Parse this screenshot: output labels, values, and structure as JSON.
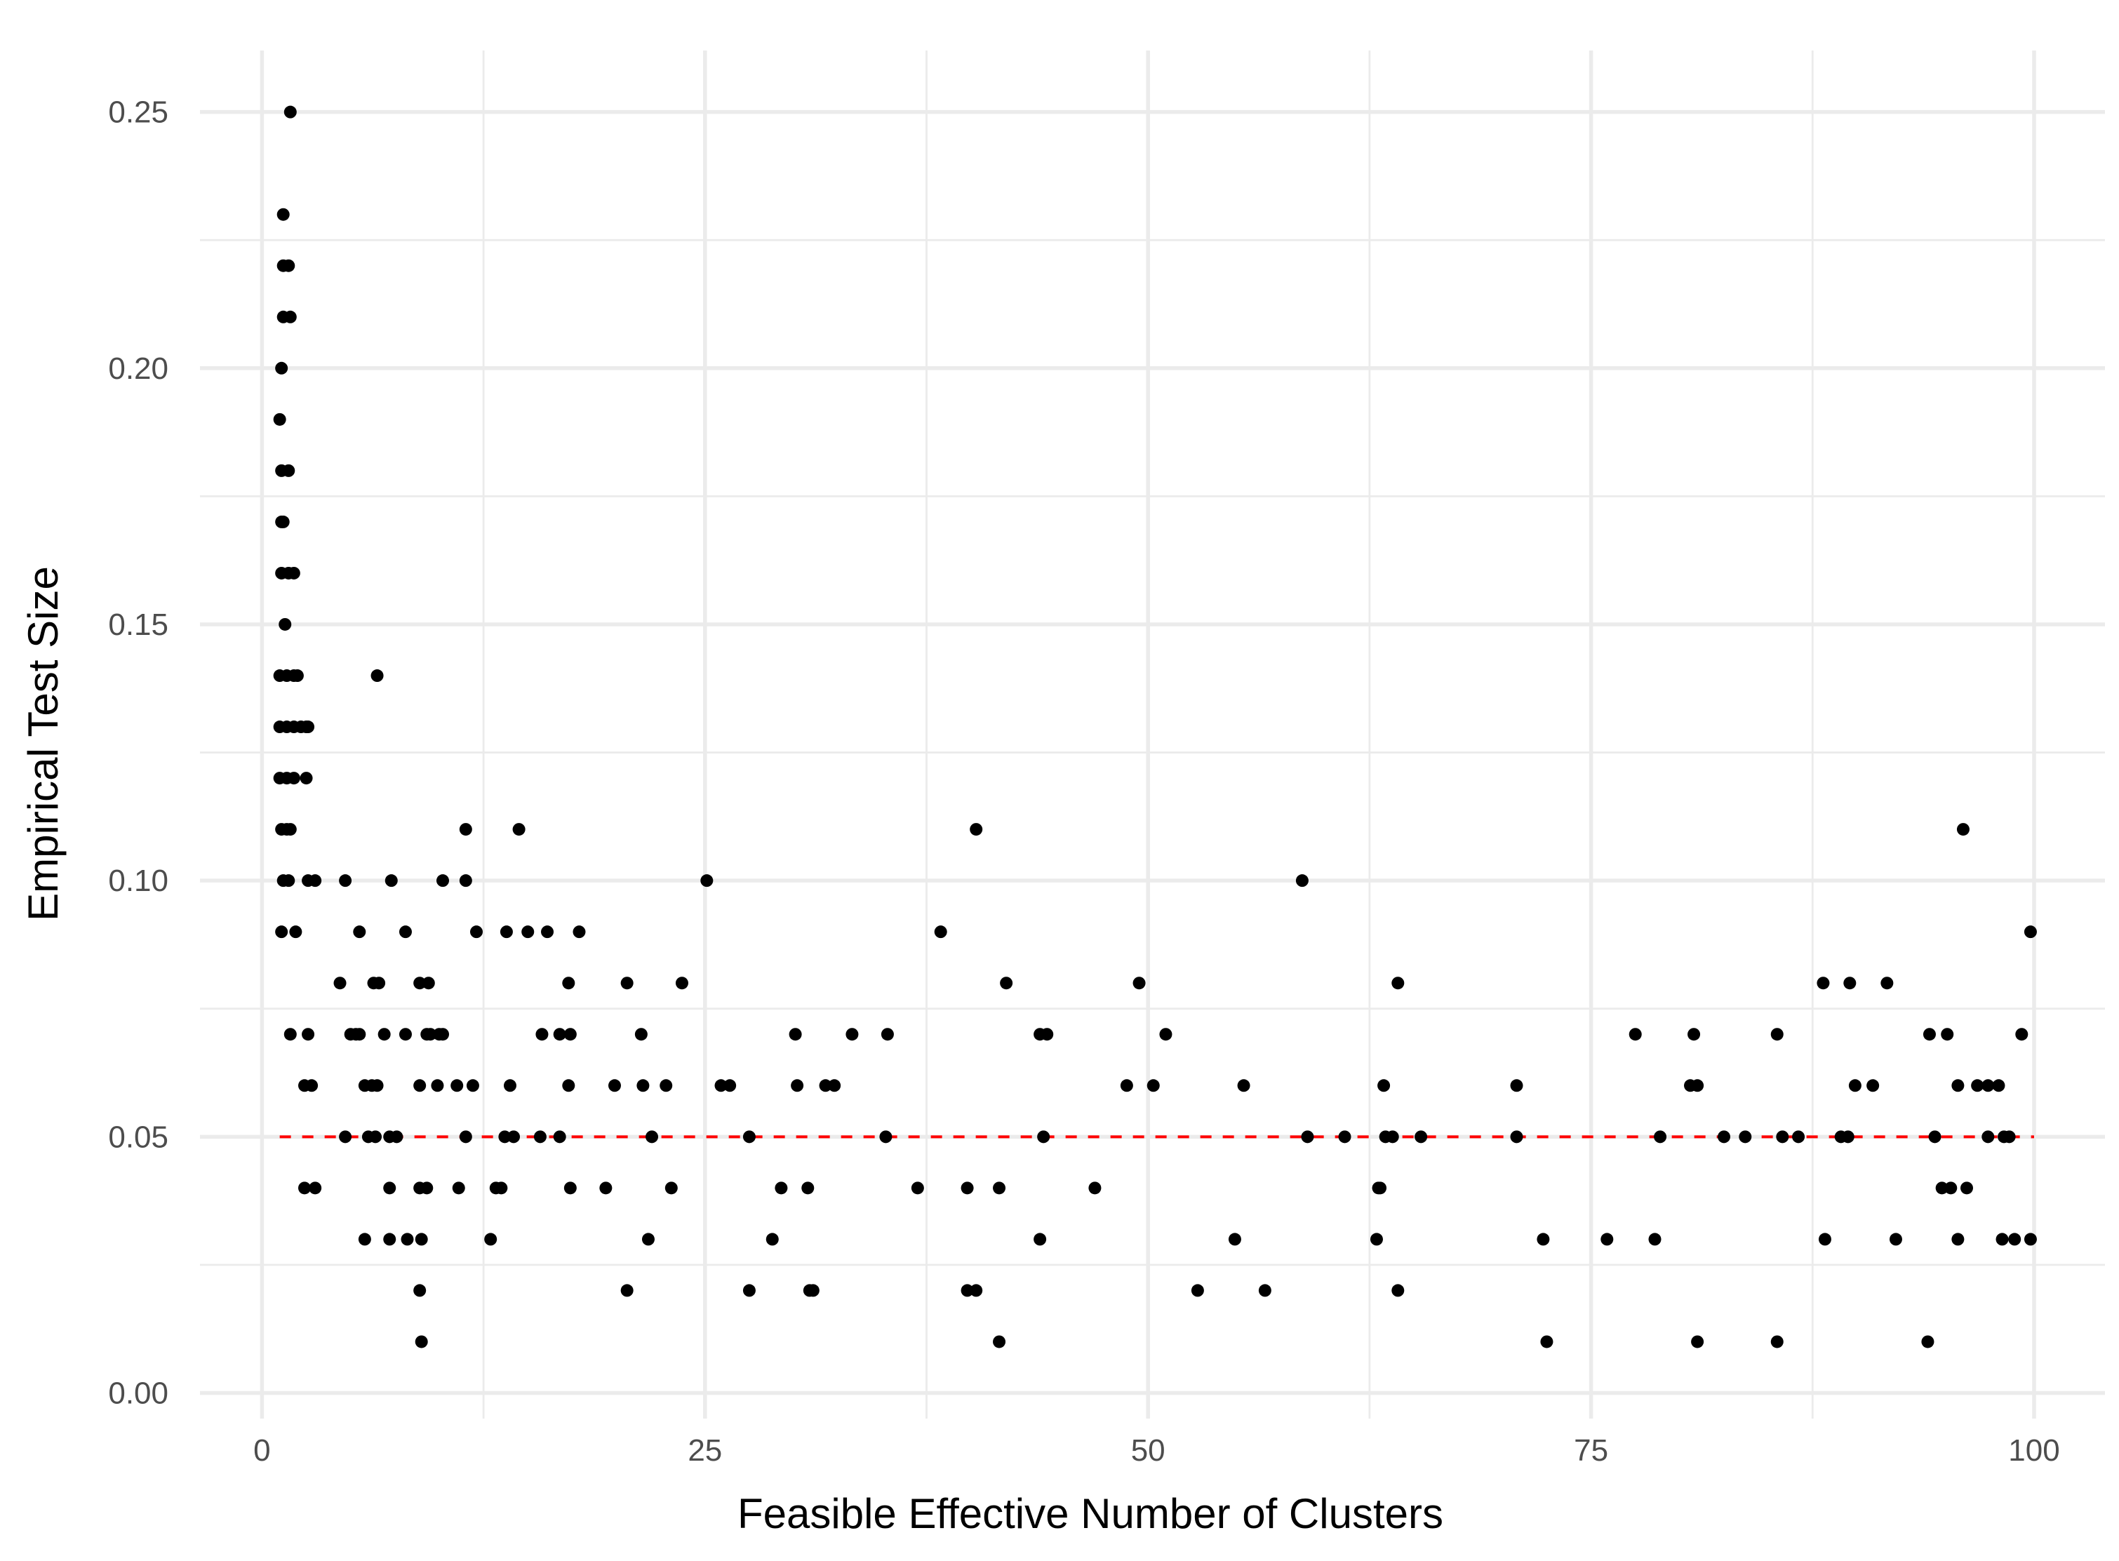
{
  "chart_data": {
    "type": "scatter",
    "title": "",
    "xlabel": "Feasible Effective Number of Clusters",
    "ylabel": "Empirical Test Size",
    "xlim": [
      -3.5,
      104
    ],
    "ylim": [
      -0.005,
      0.262
    ],
    "x_ticks": [
      0,
      25,
      50,
      75,
      100
    ],
    "x_tick_labels": [
      "0",
      "25",
      "50",
      "75",
      "100"
    ],
    "y_ticks": [
      0,
      0.05,
      0.1,
      0.15,
      0.2,
      0.25
    ],
    "y_tick_labels": [
      "0.00",
      "0.05",
      "0.10",
      "0.15",
      "0.20",
      "0.25"
    ],
    "grid": true,
    "point_color": "#000000",
    "reference_line": {
      "y": 0.05,
      "x_range": [
        1,
        100
      ],
      "color": "#ff0000",
      "style": "dashed"
    },
    "points": [
      [
        1.6,
        0.25
      ],
      [
        1.2,
        0.23
      ],
      [
        1.2,
        0.22
      ],
      [
        1.5,
        0.22
      ],
      [
        1.2,
        0.21
      ],
      [
        1.6,
        0.21
      ],
      [
        1.1,
        0.2
      ],
      [
        1.0,
        0.19
      ],
      [
        1.1,
        0.18
      ],
      [
        1.5,
        0.18
      ],
      [
        1.1,
        0.17
      ],
      [
        1.2,
        0.17
      ],
      [
        1.1,
        0.16
      ],
      [
        1.5,
        0.16
      ],
      [
        1.8,
        0.16
      ],
      [
        1.3,
        0.15
      ],
      [
        1.0,
        0.14
      ],
      [
        1.4,
        0.14
      ],
      [
        1.8,
        0.14
      ],
      [
        2.0,
        0.14
      ],
      [
        1.0,
        0.13
      ],
      [
        1.4,
        0.13
      ],
      [
        1.8,
        0.13
      ],
      [
        2.2,
        0.13
      ],
      [
        2.5,
        0.13
      ],
      [
        2.6,
        0.13
      ],
      [
        1.0,
        0.12
      ],
      [
        1.4,
        0.12
      ],
      [
        1.8,
        0.12
      ],
      [
        2.5,
        0.12
      ],
      [
        1.1,
        0.11
      ],
      [
        1.4,
        0.11
      ],
      [
        1.6,
        0.11
      ],
      [
        1.2,
        0.1
      ],
      [
        1.5,
        0.1
      ],
      [
        2.6,
        0.1
      ],
      [
        3.0,
        0.1
      ],
      [
        4.7,
        0.1
      ],
      [
        1.1,
        0.09
      ],
      [
        1.9,
        0.09
      ],
      [
        1.6,
        0.07
      ],
      [
        2.6,
        0.07
      ],
      [
        2.4,
        0.06
      ],
      [
        2.8,
        0.06
      ],
      [
        2.4,
        0.04
      ],
      [
        3.0,
        0.04
      ],
      [
        6.5,
        0.14
      ],
      [
        4.4,
        0.08
      ],
      [
        5.5,
        0.09
      ],
      [
        7.3,
        0.1
      ],
      [
        6.3,
        0.08
      ],
      [
        6.6,
        0.08
      ],
      [
        8.1,
        0.09
      ],
      [
        5.0,
        0.07
      ],
      [
        5.3,
        0.07
      ],
      [
        5.5,
        0.07
      ],
      [
        6.9,
        0.07
      ],
      [
        8.1,
        0.07
      ],
      [
        5.8,
        0.06
      ],
      [
        6.2,
        0.06
      ],
      [
        6.5,
        0.06
      ],
      [
        4.7,
        0.05
      ],
      [
        6.0,
        0.05
      ],
      [
        6.4,
        0.05
      ],
      [
        7.2,
        0.05
      ],
      [
        7.6,
        0.05
      ],
      [
        7.2,
        0.04
      ],
      [
        5.8,
        0.03
      ],
      [
        7.2,
        0.03
      ],
      [
        8.2,
        0.03
      ],
      [
        8.9,
        0.08
      ],
      [
        9.4,
        0.08
      ],
      [
        9.3,
        0.07
      ],
      [
        9.5,
        0.07
      ],
      [
        10.0,
        0.07
      ],
      [
        10.2,
        0.07
      ],
      [
        8.9,
        0.06
      ],
      [
        9.9,
        0.06
      ],
      [
        8.9,
        0.04
      ],
      [
        9.3,
        0.04
      ],
      [
        9.0,
        0.03
      ],
      [
        8.9,
        0.02
      ],
      [
        9.0,
        0.01
      ],
      [
        10.2,
        0.1
      ],
      [
        11.5,
        0.1
      ],
      [
        11.5,
        0.11
      ],
      [
        12.1,
        0.09
      ],
      [
        11.0,
        0.06
      ],
      [
        11.9,
        0.06
      ],
      [
        11.5,
        0.05
      ],
      [
        11.1,
        0.04
      ],
      [
        12.9,
        0.03
      ],
      [
        13.2,
        0.04
      ],
      [
        13.5,
        0.04
      ],
      [
        13.8,
        0.09
      ],
      [
        14.5,
        0.11
      ],
      [
        15.0,
        0.09
      ],
      [
        16.1,
        0.09
      ],
      [
        14.0,
        0.06
      ],
      [
        13.7,
        0.05
      ],
      [
        14.2,
        0.05
      ],
      [
        15.7,
        0.05
      ],
      [
        16.8,
        0.05
      ],
      [
        15.8,
        0.07
      ],
      [
        16.8,
        0.07
      ],
      [
        17.4,
        0.07
      ],
      [
        17.3,
        0.08
      ],
      [
        17.9,
        0.09
      ],
      [
        17.3,
        0.06
      ],
      [
        17.4,
        0.04
      ],
      [
        19.4,
        0.04
      ],
      [
        19.9,
        0.06
      ],
      [
        20.6,
        0.08
      ],
      [
        21.4,
        0.07
      ],
      [
        21.5,
        0.06
      ],
      [
        22.8,
        0.06
      ],
      [
        22.0,
        0.05
      ],
      [
        21.8,
        0.03
      ],
      [
        20.6,
        0.02
      ],
      [
        23.1,
        0.04
      ],
      [
        23.7,
        0.08
      ],
      [
        25.1,
        0.1
      ],
      [
        25.9,
        0.06
      ],
      [
        26.4,
        0.06
      ],
      [
        27.5,
        0.05
      ],
      [
        27.5,
        0.02
      ],
      [
        28.8,
        0.03
      ],
      [
        29.3,
        0.04
      ],
      [
        30.1,
        0.07
      ],
      [
        30.2,
        0.06
      ],
      [
        30.8,
        0.04
      ],
      [
        30.9,
        0.02
      ],
      [
        31.1,
        0.02
      ],
      [
        31.8,
        0.06
      ],
      [
        32.3,
        0.06
      ],
      [
        33.3,
        0.07
      ],
      [
        35.3,
        0.07
      ],
      [
        35.2,
        0.05
      ],
      [
        37.0,
        0.04
      ],
      [
        38.3,
        0.09
      ],
      [
        39.8,
        0.04
      ],
      [
        39.8,
        0.02
      ],
      [
        40.3,
        0.02
      ],
      [
        40.3,
        0.11
      ],
      [
        41.6,
        0.04
      ],
      [
        41.6,
        0.01
      ],
      [
        42.0,
        0.08
      ],
      [
        43.9,
        0.07
      ],
      [
        44.3,
        0.07
      ],
      [
        44.1,
        0.05
      ],
      [
        43.9,
        0.03
      ],
      [
        47.0,
        0.04
      ],
      [
        48.8,
        0.06
      ],
      [
        49.5,
        0.08
      ],
      [
        50.3,
        0.06
      ],
      [
        51.0,
        0.07
      ],
      [
        52.8,
        0.02
      ],
      [
        54.9,
        0.03
      ],
      [
        55.4,
        0.06
      ],
      [
        56.6,
        0.02
      ],
      [
        58.7,
        0.1
      ],
      [
        59.0,
        0.05
      ],
      [
        61.1,
        0.05
      ],
      [
        63.3,
        0.06
      ],
      [
        63.0,
        0.04
      ],
      [
        63.1,
        0.04
      ],
      [
        62.9,
        0.03
      ],
      [
        63.4,
        0.05
      ],
      [
        63.8,
        0.05
      ],
      [
        64.1,
        0.08
      ],
      [
        64.1,
        0.02
      ],
      [
        65.4,
        0.05
      ],
      [
        70.8,
        0.06
      ],
      [
        70.8,
        0.05
      ],
      [
        72.3,
        0.03
      ],
      [
        72.5,
        0.01
      ],
      [
        75.9,
        0.03
      ],
      [
        77.5,
        0.07
      ],
      [
        78.6,
        0.03
      ],
      [
        78.9,
        0.05
      ],
      [
        80.8,
        0.07
      ],
      [
        80.6,
        0.06
      ],
      [
        81.0,
        0.06
      ],
      [
        81.0,
        0.01
      ],
      [
        82.5,
        0.05
      ],
      [
        83.7,
        0.05
      ],
      [
        85.5,
        0.07
      ],
      [
        85.8,
        0.05
      ],
      [
        85.5,
        0.01
      ],
      [
        86.7,
        0.05
      ],
      [
        88.1,
        0.08
      ],
      [
        88.2,
        0.03
      ],
      [
        89.1,
        0.05
      ],
      [
        89.5,
        0.05
      ],
      [
        89.6,
        0.08
      ],
      [
        89.9,
        0.06
      ],
      [
        90.9,
        0.06
      ],
      [
        91.7,
        0.08
      ],
      [
        92.2,
        0.03
      ],
      [
        94.1,
        0.07
      ],
      [
        94.0,
        0.01
      ],
      [
        94.4,
        0.05
      ],
      [
        94.8,
        0.04
      ],
      [
        95.3,
        0.04
      ],
      [
        95.1,
        0.07
      ],
      [
        95.7,
        0.06
      ],
      [
        95.7,
        0.03
      ],
      [
        96.0,
        0.11
      ],
      [
        96.2,
        0.04
      ],
      [
        96.8,
        0.06
      ],
      [
        97.4,
        0.06
      ],
      [
        98.0,
        0.06
      ],
      [
        97.4,
        0.05
      ],
      [
        98.3,
        0.05
      ],
      [
        98.6,
        0.05
      ],
      [
        98.2,
        0.03
      ],
      [
        98.9,
        0.03
      ],
      [
        99.3,
        0.07
      ],
      [
        99.8,
        0.09
      ],
      [
        99.8,
        0.03
      ]
    ]
  }
}
